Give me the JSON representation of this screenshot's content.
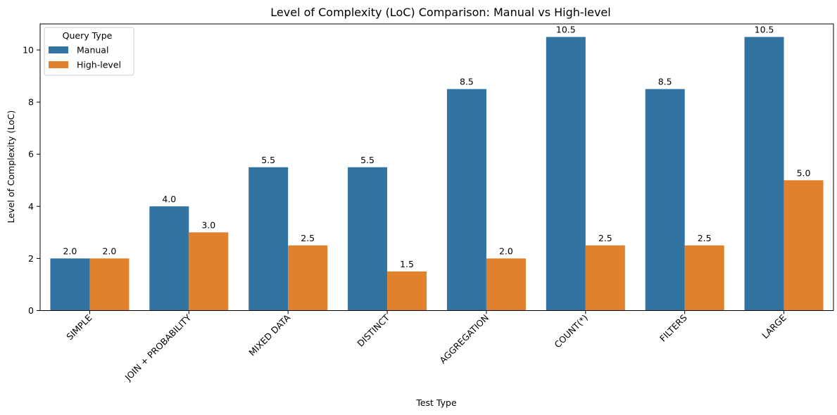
{
  "chart_data": {
    "type": "bar",
    "title": "Level of Complexity (LoC) Comparison: Manual vs High-level",
    "xlabel": "Test Type",
    "ylabel": "Level of Complexity (LoC)",
    "categories": [
      "SIMPLE",
      "JOIN + PROBABILITY",
      "MIXED DATA",
      "DISTINCT",
      "AGGREGATION",
      "COUNT(*)",
      "FILTERS",
      "LARGE"
    ],
    "series": [
      {
        "name": "Manual",
        "color": "#3274a1",
        "values": [
          2.0,
          4.0,
          5.5,
          5.5,
          8.5,
          10.5,
          8.5,
          10.5
        ]
      },
      {
        "name": "High-level",
        "color": "#e1812c",
        "values": [
          2.0,
          3.0,
          2.5,
          1.5,
          2.0,
          2.5,
          2.5,
          5.0
        ]
      }
    ],
    "ylim": [
      0,
      11
    ],
    "yticks": [
      0,
      2,
      4,
      6,
      8,
      10
    ],
    "grid": false,
    "legend": {
      "title": "Query Type",
      "position": "top-left"
    },
    "data_labels": true
  }
}
